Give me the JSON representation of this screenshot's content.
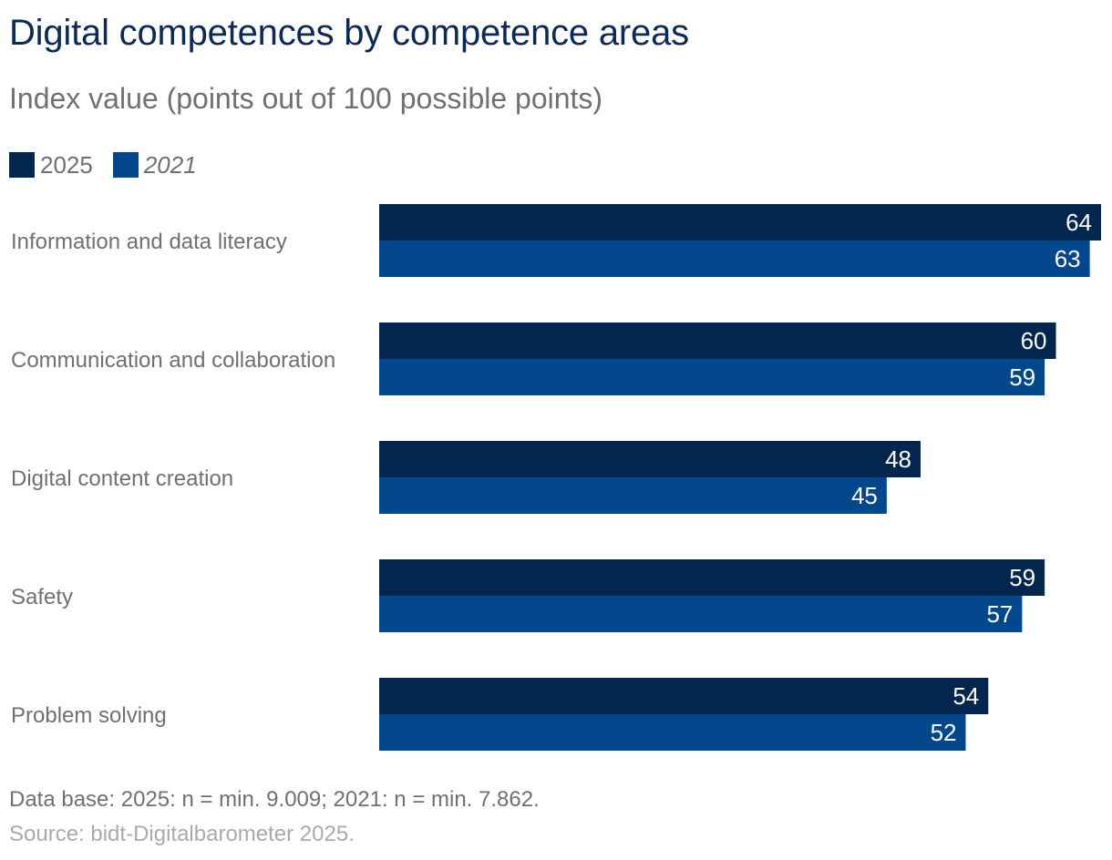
{
  "colors": {
    "series_2025": "#03264f",
    "series_2021": "#03478c",
    "label_text": "#6e7075",
    "value_text": "#ffffff"
  },
  "chart_data": {
    "type": "bar",
    "orientation": "horizontal",
    "title": "Digital competences by competence areas",
    "subtitle": "Index value (points out of 100 possible points)",
    "categories": [
      "Information and data literacy",
      "Communication and collaboration",
      "Digital content creation",
      "Safety",
      "Problem solving"
    ],
    "series": [
      {
        "name": "2025",
        "values": [
          64,
          60,
          48,
          59,
          54
        ]
      },
      {
        "name": "2021",
        "values": [
          63,
          59,
          45,
          57,
          52
        ]
      }
    ],
    "xlim": [
      0,
      64
    ],
    "grid": false,
    "legend_position": "top-left",
    "data_labels": true
  },
  "legend": [
    {
      "label": "2025"
    },
    {
      "label": "2021"
    }
  ],
  "footnote": "Data base: 2025: n = min. 9.009; 2021: n = min. 7.862.",
  "source": "Source: bidt-Digitalbarometer 2025."
}
